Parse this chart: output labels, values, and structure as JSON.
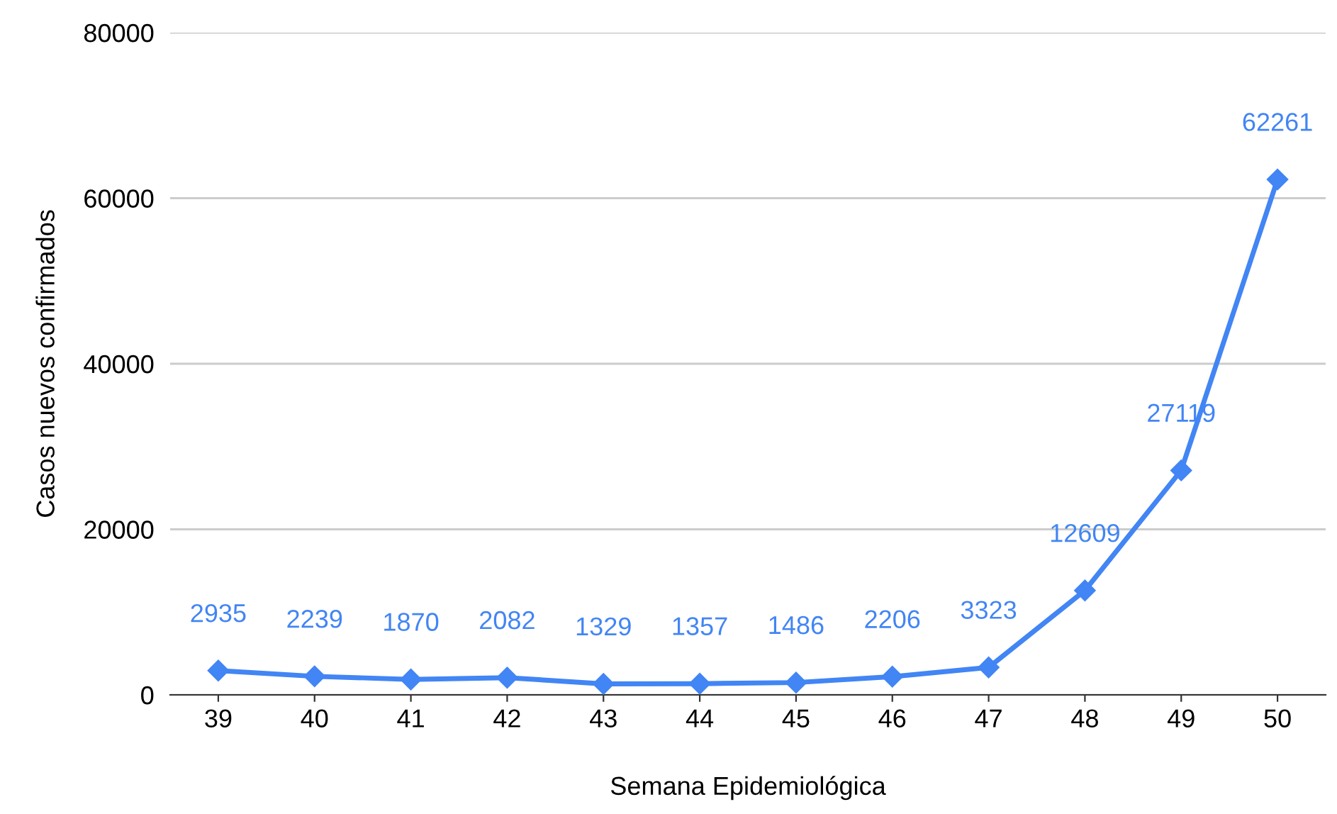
{
  "chart_data": {
    "type": "line",
    "xlabel": "Semana Epidemiológica",
    "ylabel": "Casos nuevos confirmados",
    "categories": [
      "39",
      "40",
      "41",
      "42",
      "43",
      "44",
      "45",
      "46",
      "47",
      "48",
      "49",
      "50"
    ],
    "series": [
      {
        "color": "#4285f4",
        "values": [
          2935,
          2239,
          1870,
          2082,
          1329,
          1357,
          1486,
          2206,
          3323,
          12609,
          27119,
          62261
        ]
      }
    ],
    "ylim": [
      0,
      80000
    ],
    "yticks": [
      0,
      20000,
      40000,
      60000,
      80000
    ],
    "grid": "y",
    "marker": "diamond",
    "line_style": "solid",
    "data_labels": true,
    "legend": false
  }
}
